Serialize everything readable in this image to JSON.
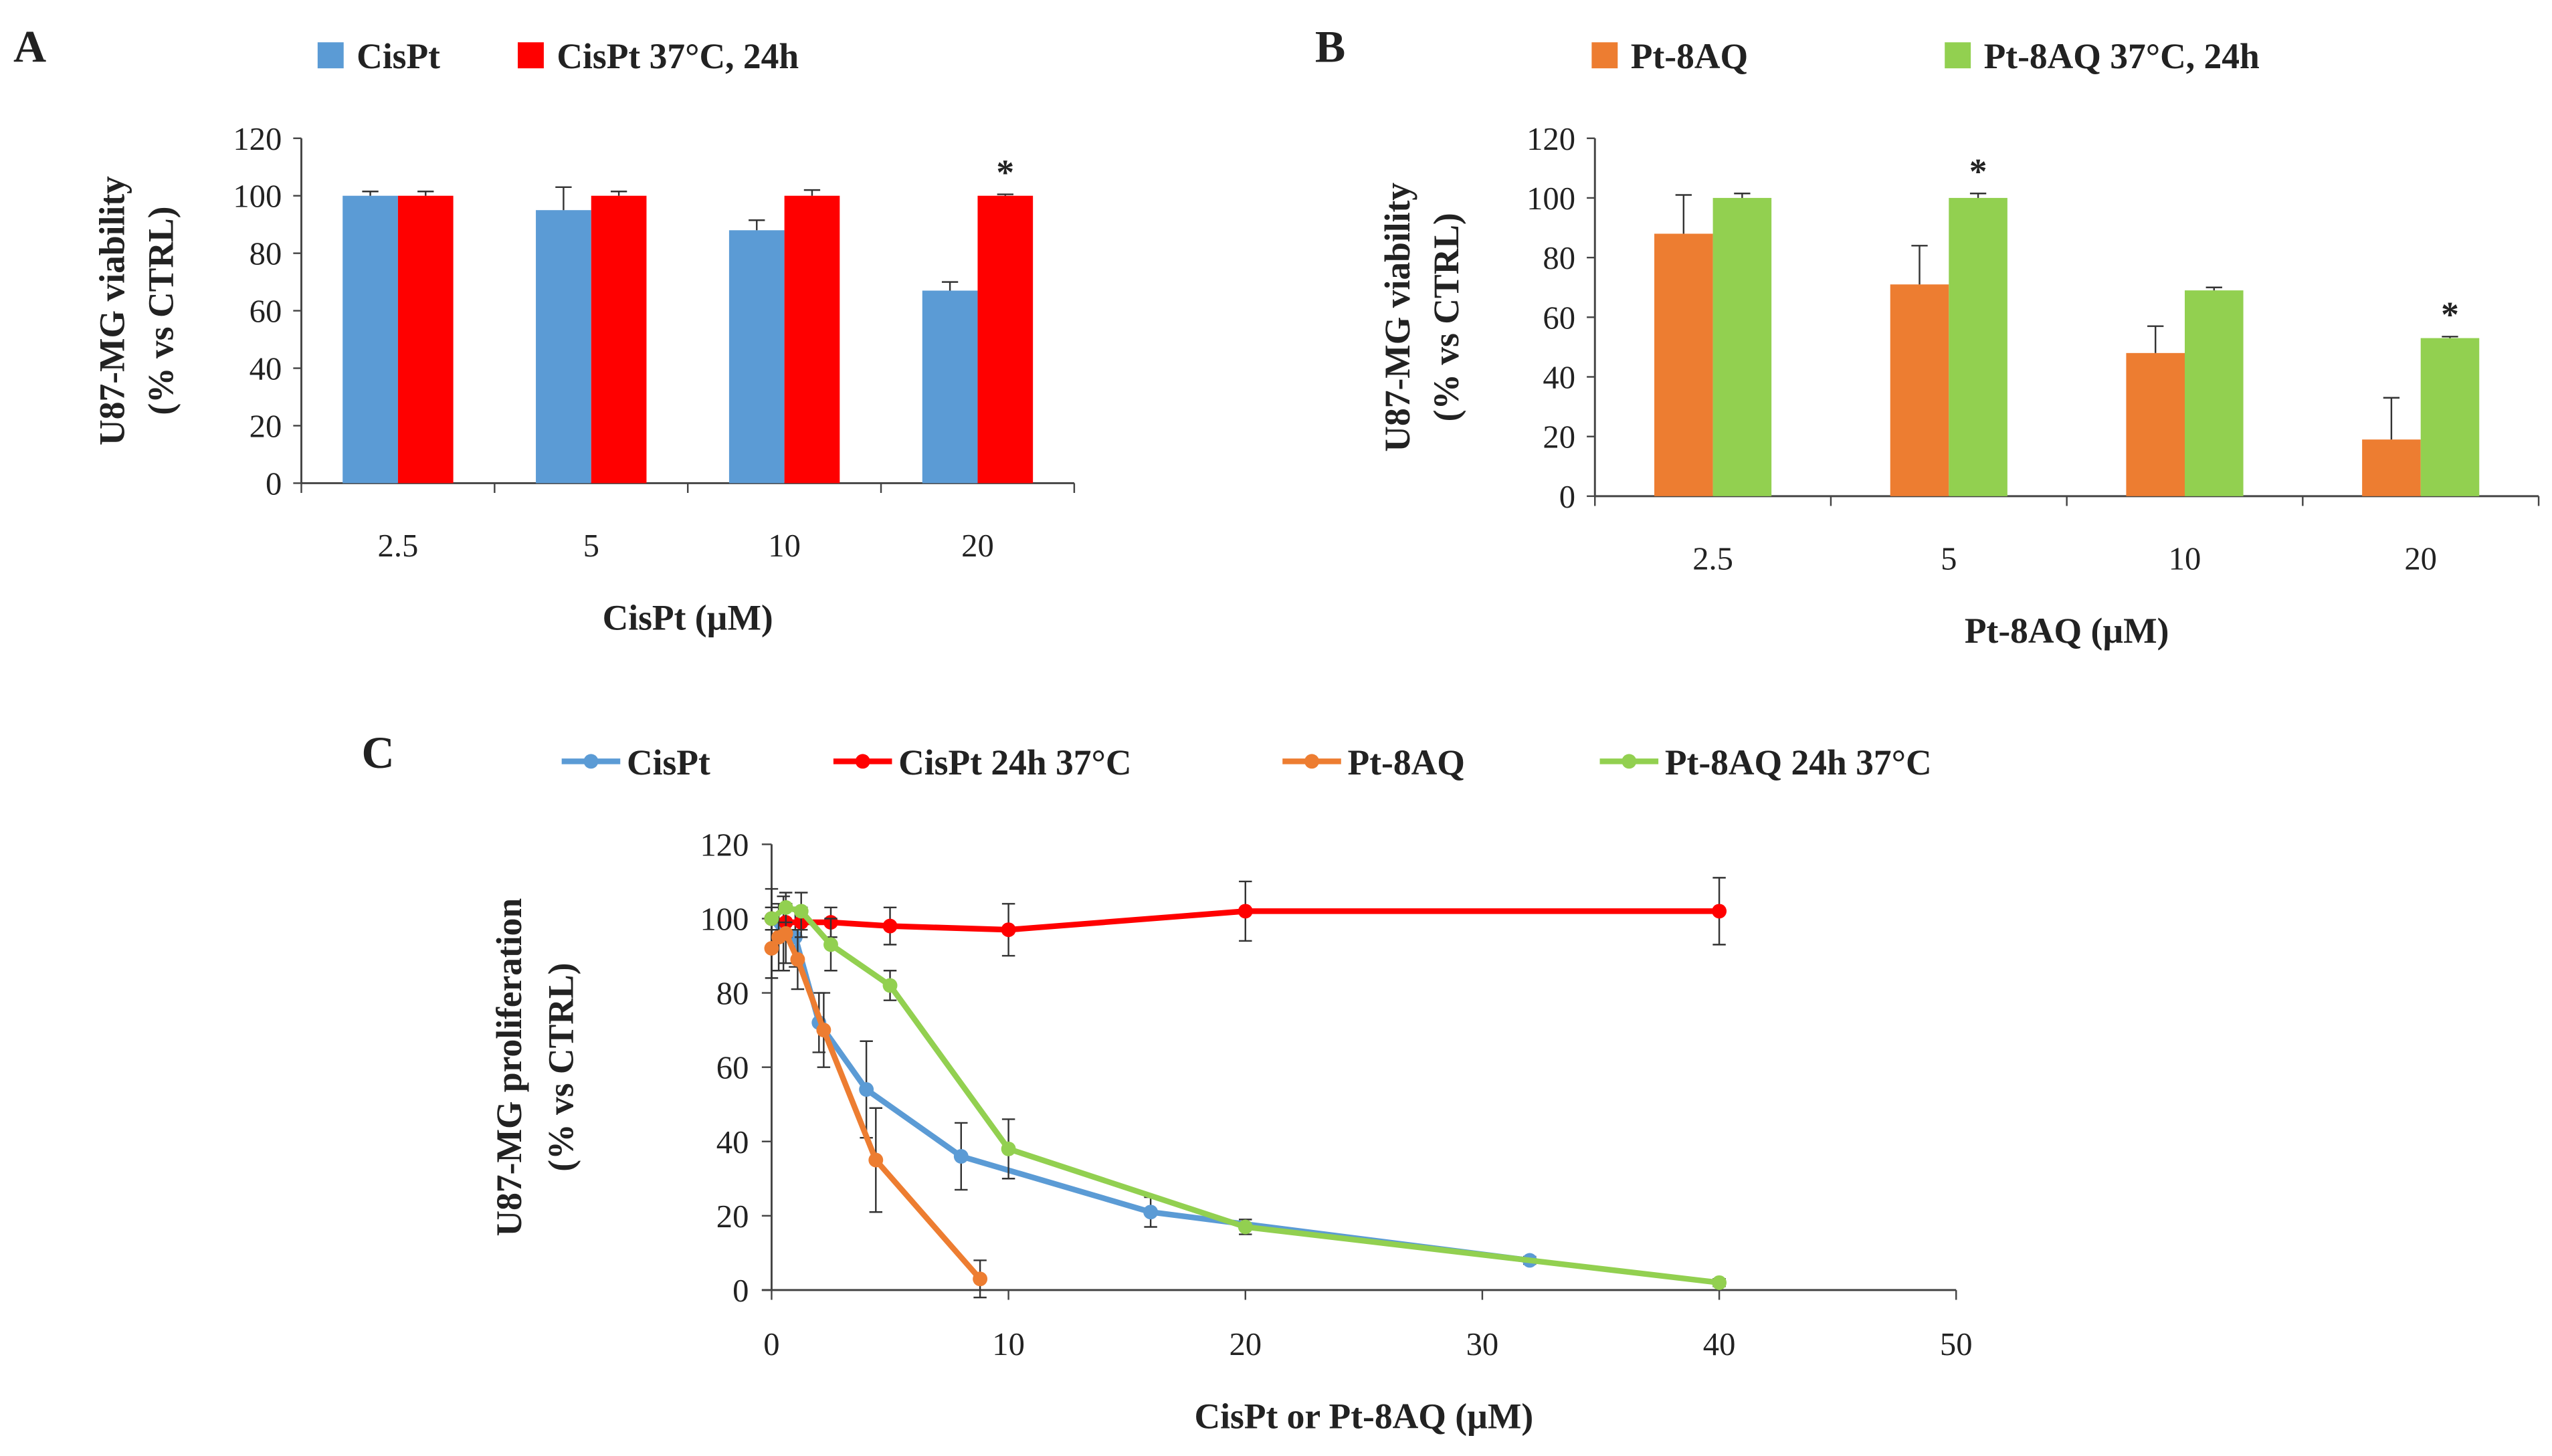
{
  "chart_data": [
    {
      "panel": "A",
      "type": "bar",
      "categories": [
        "2.5",
        "5",
        "10",
        "20"
      ],
      "xlabel": "CisPt (µM)",
      "ylabel": [
        "U87-MG viability",
        "(% vs CTRL)"
      ],
      "ylim": [
        0,
        120
      ],
      "yticks": [
        0,
        20,
        40,
        60,
        80,
        100,
        120
      ],
      "legend_position": "top",
      "series": [
        {
          "name": "CisPt",
          "color": "#5b9bd5",
          "values": [
            100,
            95,
            88,
            67
          ],
          "errors": [
            1.5,
            8,
            3.5,
            3
          ]
        },
        {
          "name": "CisPt 37°C, 24h",
          "color": "#ff0000",
          "values": [
            100,
            100,
            100,
            100
          ],
          "errors": [
            1.5,
            1.5,
            2,
            0.5
          ]
        }
      ],
      "annotations": [
        {
          "category": "20",
          "series": 1,
          "text": "*"
        }
      ]
    },
    {
      "panel": "B",
      "type": "bar",
      "categories": [
        "2.5",
        "5",
        "10",
        "20"
      ],
      "xlabel": "Pt-8AQ (µM)",
      "ylabel": [
        "U87-MG viability",
        "(% vs CTRL)"
      ],
      "ylim": [
        0,
        120
      ],
      "yticks": [
        0,
        20,
        40,
        60,
        80,
        100,
        120
      ],
      "legend_position": "top",
      "series": [
        {
          "name": "Pt-8AQ",
          "color": "#ed7d31",
          "values": [
            88,
            71,
            48,
            19
          ],
          "errors": [
            13,
            13,
            9,
            14
          ]
        },
        {
          "name": "Pt-8AQ 37°C, 24h",
          "color": "#92d050",
          "values": [
            100,
            100,
            69,
            53
          ],
          "errors": [
            1.5,
            1.5,
            1,
            0.5
          ]
        }
      ],
      "annotations": [
        {
          "category": "5",
          "series": 1,
          "text": "*"
        },
        {
          "category": "20",
          "series": 1,
          "text": "*"
        }
      ]
    },
    {
      "panel": "C",
      "type": "line",
      "xlabel": "CisPt or Pt-8AQ (µM)",
      "ylabel": [
        "U87-MG proliferation",
        "(% vs CTRL)"
      ],
      "xlim": [
        0,
        50
      ],
      "ylim": [
        0,
        120
      ],
      "xticks": [
        0,
        10,
        20,
        30,
        40,
        50
      ],
      "yticks": [
        0,
        20,
        40,
        60,
        80,
        100,
        120
      ],
      "legend_position": "top",
      "series": [
        {
          "name": "CisPt",
          "color": "#5b9bd5",
          "x": [
            0,
            0.5,
            1,
            2,
            4,
            8,
            16,
            32
          ],
          "y": [
            100,
            96,
            95,
            72,
            54,
            36,
            21,
            8
          ],
          "errors": [
            8,
            10,
            8,
            8,
            13,
            9,
            4,
            1
          ]
        },
        {
          "name": "CisPt 24h 37°C",
          "color": "#ff0000",
          "x": [
            0,
            0.6,
            1.25,
            2.5,
            5,
            10,
            20,
            40
          ],
          "y": [
            100,
            99,
            99,
            99,
            98,
            97,
            102,
            102
          ],
          "errors": [
            3,
            4,
            4,
            4,
            5,
            7,
            8,
            9
          ]
        },
        {
          "name": "Pt-8AQ",
          "color": "#ed7d31",
          "x": [
            0,
            0.3,
            0.6,
            1.1,
            2.2,
            4.4,
            8.8
          ],
          "y": [
            92,
            95,
            96,
            89,
            70,
            35,
            3
          ],
          "errors": [
            8,
            9,
            8,
            8,
            10,
            14,
            5
          ]
        },
        {
          "name": "Pt-8AQ 24h 37°C",
          "color": "#92d050",
          "x": [
            0,
            0.6,
            1.25,
            2.5,
            5,
            10,
            20,
            40
          ],
          "y": [
            100,
            103,
            102,
            93,
            82,
            38,
            17,
            2
          ],
          "errors": [
            3,
            4,
            5,
            7,
            4,
            8,
            2,
            1
          ]
        }
      ]
    }
  ]
}
